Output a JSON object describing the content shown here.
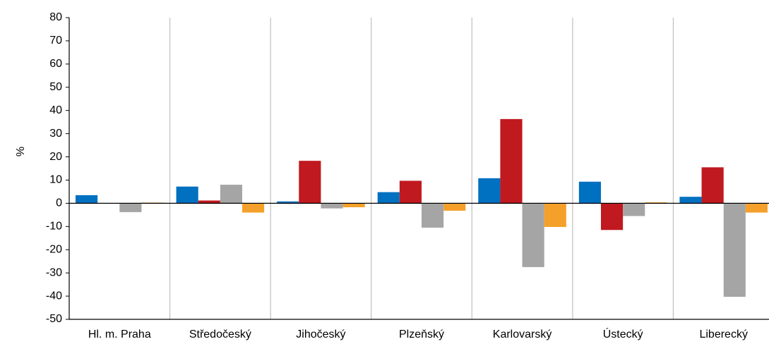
{
  "chart_data": {
    "type": "bar",
    "y_label": "%",
    "categories": [
      "Hl. m. Praha",
      "Středočeský",
      "Jihočeský",
      "Plzeňský",
      "Karlovarský",
      "Ústecký",
      "Liberecký"
    ],
    "series": [
      {
        "color": "#0070c0",
        "values": [
          3.5,
          7.2,
          0.8,
          4.8,
          10.8,
          9.3,
          2.8
        ]
      },
      {
        "color": "#c0191f",
        "values": [
          0,
          1.2,
          18.3,
          9.7,
          36.3,
          -11.5,
          15.5
        ]
      },
      {
        "color": "#a5a5a5",
        "values": [
          -3.8,
          8,
          -2.2,
          -10.5,
          -27.5,
          -5.5,
          -40.3
        ]
      },
      {
        "color": "#f5a02a",
        "values": [
          0.3,
          -4,
          -1.7,
          -3.2,
          -10.2,
          0.4,
          -4
        ]
      }
    ],
    "ylim": [
      -50,
      80
    ],
    "yticks": [
      -50,
      -40,
      -30,
      -20,
      -10,
      0,
      10,
      20,
      30,
      40,
      50,
      60,
      70,
      80
    ],
    "grid": true
  }
}
